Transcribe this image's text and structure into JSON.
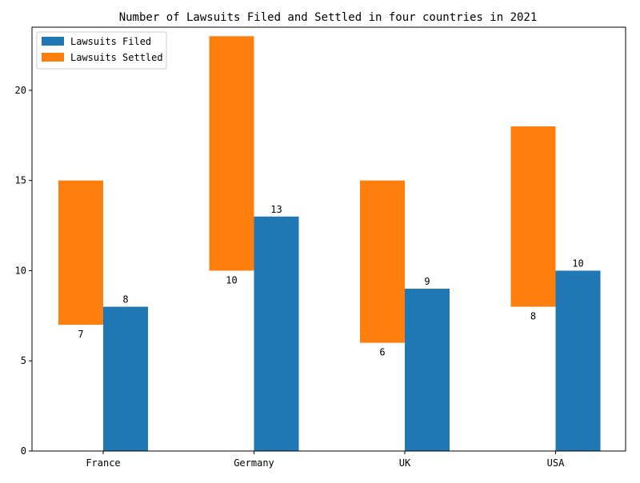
{
  "chart_data": {
    "type": "bar",
    "title": "Number of Lawsuits Filed and Settled in four countries in 2021",
    "xlabel": "",
    "ylabel": "",
    "categories": [
      "France",
      "Germany",
      "UK",
      "USA"
    ],
    "series": [
      {
        "name": "Lawsuits Filed",
        "color": "#1f77b4",
        "values": [
          8,
          13,
          9,
          10
        ]
      },
      {
        "name": "Lawsuits Settled",
        "color": "#ff7f0e",
        "values": [
          7,
          10,
          6,
          8
        ]
      }
    ],
    "ylim": [
      0,
      23.5
    ],
    "yticks": [
      0,
      5,
      10,
      15,
      20
    ],
    "legend": "top-left",
    "grid": false
  }
}
